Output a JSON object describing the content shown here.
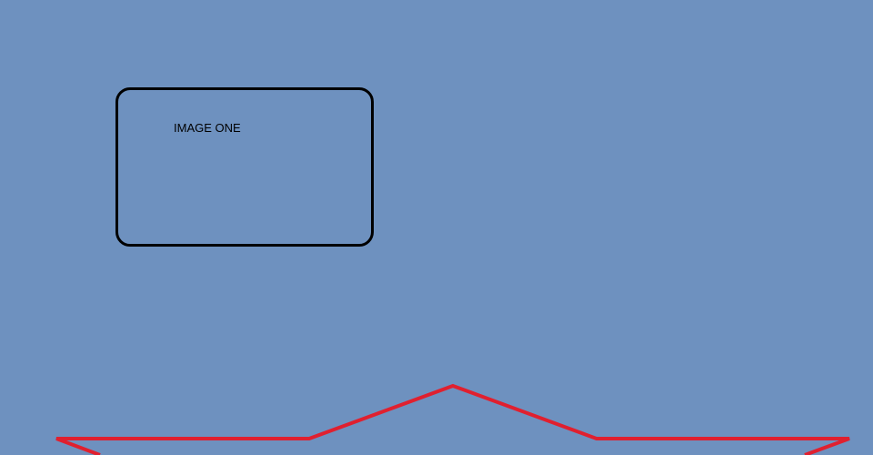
{
  "image_box": {
    "label": "IMAGE ONE"
  },
  "colors": {
    "background": "#6e91bf",
    "box_border": "#000000",
    "star_stroke": "#e0202f"
  },
  "icons": {
    "star": "star-outline-icon"
  }
}
